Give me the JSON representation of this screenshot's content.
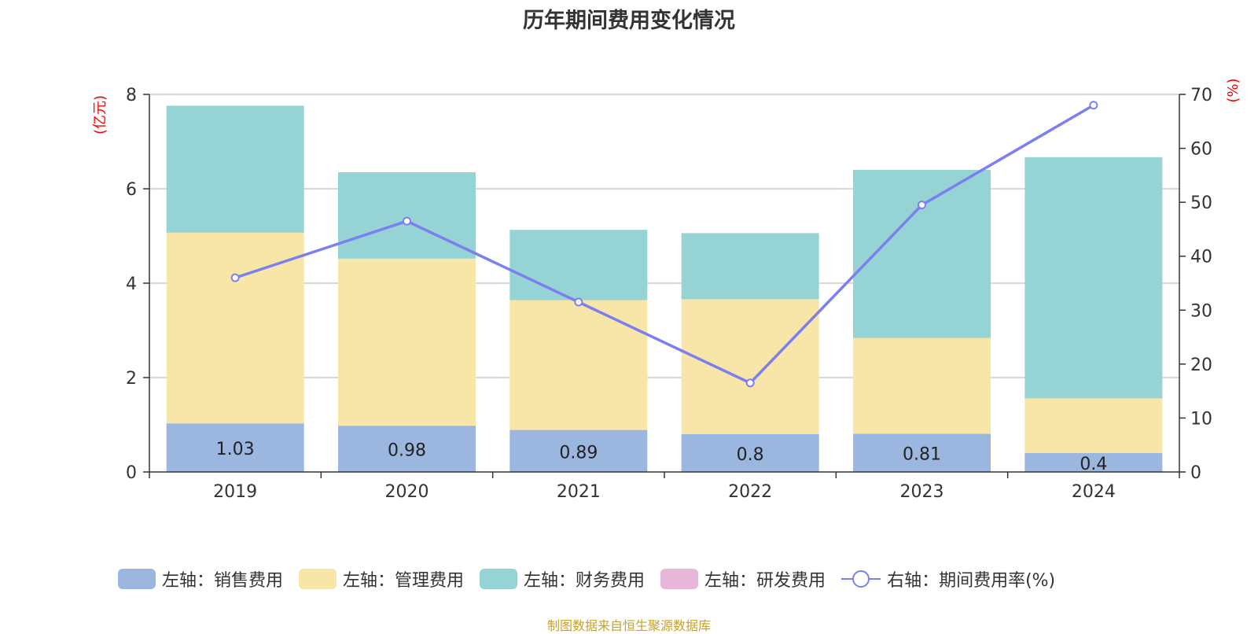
{
  "chart_data": {
    "type": "bar",
    "title": "历年期间费用变化情况",
    "categories": [
      "2019",
      "2020",
      "2021",
      "2022",
      "2023",
      "2024"
    ],
    "left_axis": {
      "unit": "(亿元)",
      "ticks": [
        "0",
        "2",
        "4",
        "6",
        "8"
      ],
      "ylim": [
        0,
        8
      ]
    },
    "right_axis": {
      "unit": "(%)",
      "ticks": [
        "0",
        "10",
        "20",
        "30",
        "40",
        "50",
        "60",
        "70"
      ],
      "ylim": [
        0,
        70
      ]
    },
    "series": [
      {
        "name": "左轴：销售费用",
        "type": "bar",
        "stack": true,
        "axis": "left",
        "color": "#9bb7e0",
        "values": [
          1.03,
          0.98,
          0.89,
          0.8,
          0.81,
          0.4
        ],
        "labels": [
          "1.03",
          "0.98",
          "0.89",
          "0.8",
          "0.81",
          "0.4"
        ]
      },
      {
        "name": "左轴：管理费用",
        "type": "bar",
        "stack": true,
        "axis": "left",
        "color": "#f7e6a8",
        "values": [
          4.04,
          3.54,
          2.75,
          2.86,
          2.03,
          1.16
        ]
      },
      {
        "name": "左轴：财务费用",
        "type": "bar",
        "stack": true,
        "axis": "left",
        "color": "#96d3d4",
        "values": [
          2.69,
          1.83,
          1.49,
          1.4,
          3.56,
          5.11
        ]
      },
      {
        "name": "左轴：研发费用",
        "type": "bar",
        "stack": true,
        "axis": "left",
        "color": "#e8b6d8",
        "values": [
          0,
          0,
          0,
          0,
          0,
          0
        ]
      },
      {
        "name": "右轴：期间费用率(%)",
        "type": "line",
        "axis": "right",
        "color": "#7b7ff0",
        "values": [
          36.0,
          46.5,
          31.5,
          16.5,
          49.5,
          68.0
        ]
      }
    ],
    "grid": true,
    "legend_position": "bottom"
  },
  "source_note": "制图数据来自恒生聚源数据库"
}
